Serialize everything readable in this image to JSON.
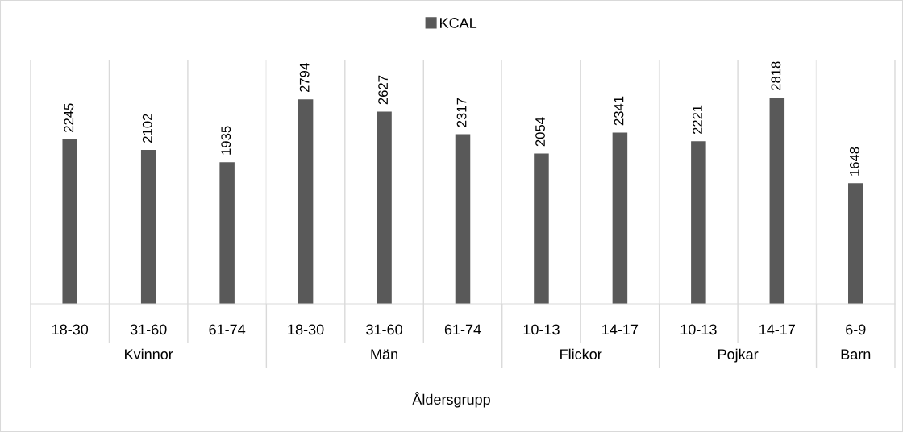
{
  "chart_data": [
    {
      "type": "bar",
      "categories": [
        "18-30",
        "31-60",
        "61-74"
      ],
      "xlabel": "Kvinnor",
      "series": [
        {
          "color": "#595959",
          "values": [
            2245,
            2102,
            1935
          ]
        }
      ],
      "data_labels": true,
      "grid": "x"
    },
    {
      "type": "bar",
      "categories": [
        "18-30",
        "31-60",
        "61-74"
      ],
      "xlabel": "Män",
      "series": [
        {
          "color": "#595959",
          "values": [
            2794,
            2627,
            2317
          ]
        }
      ],
      "data_labels": true,
      "grid": "x"
    },
    {
      "type": "bar",
      "categories": [
        "10-13",
        "14-17"
      ],
      "xlabel": "Flickor",
      "series": [
        {
          "name": "KCAL",
          "color": "#595959",
          "values": [
            2054,
            2341
          ]
        }
      ],
      "data_labels": true,
      "grid": "x",
      "legend": "top",
      "annotations": [
        "Åldersgrupp"
      ]
    },
    {
      "type": "bar",
      "categories": [
        "10-13",
        "14-17"
      ],
      "xlabel": "Pojkar",
      "series": [
        {
          "color": "#595959",
          "values": [
            2221,
            2818
          ]
        }
      ],
      "data_labels": true,
      "grid": "x"
    },
    {
      "type": "bar",
      "categories": [
        "6-9"
      ],
      "xlabel": "Barn",
      "series": [
        {
          "color": "#595959",
          "values": [
            1648
          ]
        }
      ],
      "data_labels": true
    }
  ]
}
